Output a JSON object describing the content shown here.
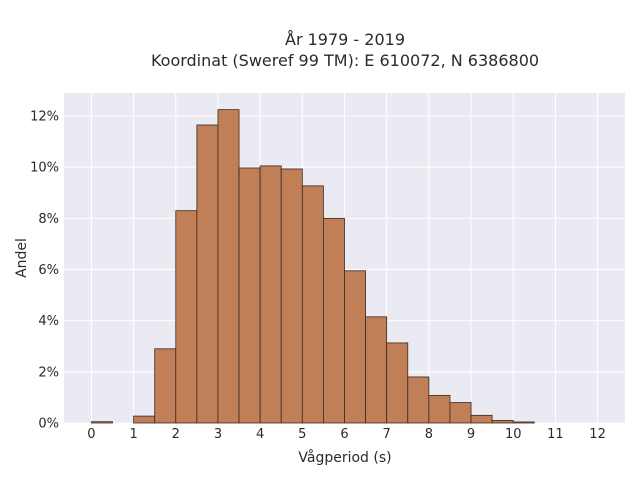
{
  "chart_data": {
    "type": "bar",
    "title_line1": "År 1979 - 2019",
    "title_line2": "Koordinat (Sweref 99 TM): E 610072, N 6386800",
    "xlabel": "Vågperiod (s)",
    "ylabel": "Andel",
    "xlim": [
      -0.65,
      12.65
    ],
    "ylim": [
      0,
      12.9
    ],
    "x_ticks": [
      0,
      1,
      2,
      3,
      4,
      5,
      6,
      7,
      8,
      9,
      10,
      11,
      12
    ],
    "y_ticks": [
      0,
      2,
      4,
      6,
      8,
      10,
      12
    ],
    "y_tick_labels": [
      "0%",
      "2%",
      "4%",
      "6%",
      "8%",
      "10%",
      "12%"
    ],
    "x_tick_labels": [
      "0",
      "1",
      "2",
      "3",
      "4",
      "5",
      "6",
      "7",
      "8",
      "9",
      "10",
      "11",
      "12"
    ],
    "bin_width": 0.5,
    "bin_starts": [
      0,
      0.5,
      1,
      1.5,
      2,
      2.5,
      3,
      3.5,
      4,
      4.5,
      5,
      5.5,
      6,
      6.5,
      7,
      7.5,
      8,
      8.5,
      9,
      9.5,
      10,
      10.5,
      11,
      11.5
    ],
    "values": [
      0.05,
      0,
      0.27,
      2.9,
      8.3,
      11.65,
      12.25,
      9.97,
      10.05,
      9.93,
      9.27,
      8.0,
      5.95,
      4.15,
      3.13,
      1.8,
      1.08,
      0.8,
      0.3,
      0.1,
      0.04,
      0,
      0,
      0
    ],
    "bar_color": "#c17f57",
    "bar_edge_color": "#3b2a1e",
    "plot_background": "#eaeaf2",
    "grid": true,
    "grid_color": "#ffffff"
  }
}
